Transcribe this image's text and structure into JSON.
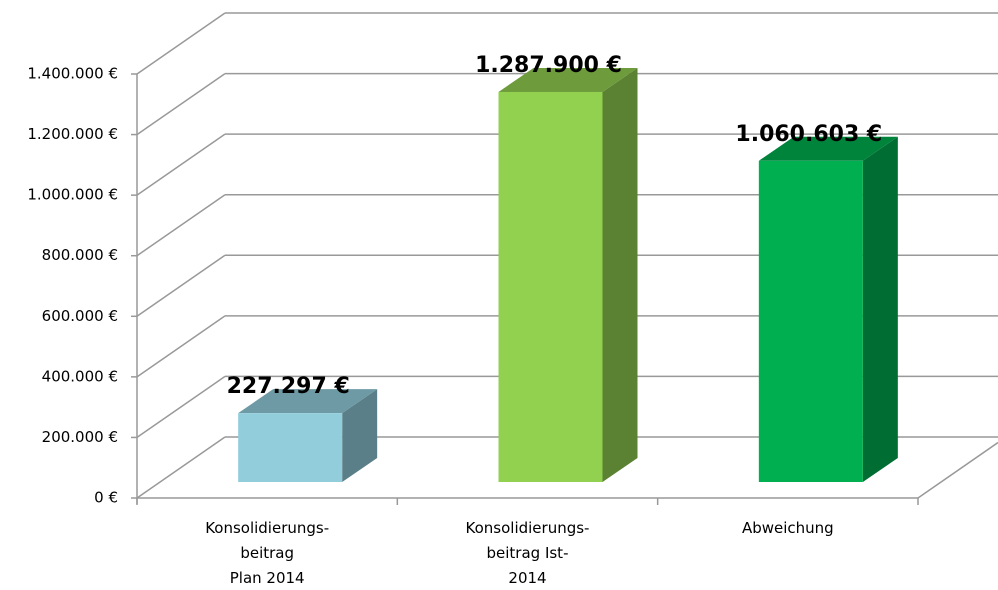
{
  "chart_data": {
    "type": "bar3d",
    "categories": [
      [
        "Konsolidierungs-",
        "beitrag",
        "Plan 2014"
      ],
      [
        "Konsolidierungs-",
        "beitrag Ist-",
        "2014"
      ],
      [
        "Abweichung"
      ]
    ],
    "values": [
      227297,
      1287900,
      1060603
    ],
    "value_labels": [
      "227.297 €",
      "1.287.900 €",
      "1.060.603 €"
    ],
    "colors": [
      "#92cddc",
      "#92d050",
      "#00b050"
    ],
    "ylim": [
      0,
      1400000
    ],
    "yticks": [
      {
        "value": 0,
        "label": "0 €"
      },
      {
        "value": 200000,
        "label": "200.000 €"
      },
      {
        "value": 400000,
        "label": "400.000 €"
      },
      {
        "value": 600000,
        "label": "600.000 €"
      },
      {
        "value": 800000,
        "label": "800.000 €"
      },
      {
        "value": 1000000,
        "label": "1.000.000 €"
      },
      {
        "value": 1200000,
        "label": "1.200.000 €"
      },
      {
        "value": 1400000,
        "label": "1.400.000 €"
      }
    ],
    "grid": true
  }
}
